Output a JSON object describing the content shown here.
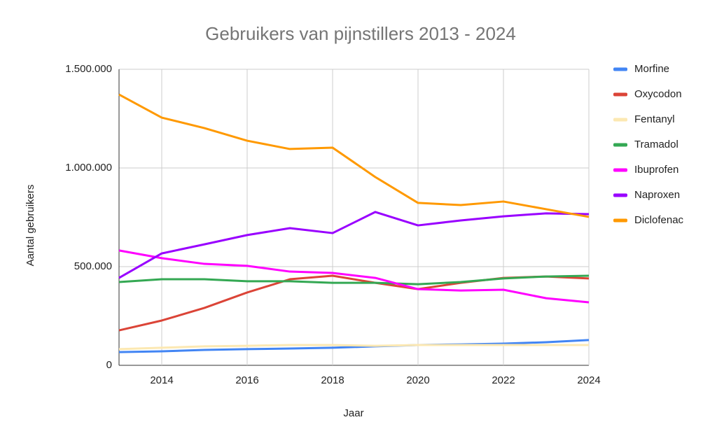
{
  "chart_data": {
    "type": "line",
    "title": "Gebruikers van pijnstillers 2013 - 2024",
    "x_label": "Jaar",
    "y_label": "Aantal gebruikers",
    "x": [
      2013,
      2014,
      2015,
      2016,
      2017,
      2018,
      2019,
      2020,
      2021,
      2022,
      2023,
      2024
    ],
    "xlim": [
      2013,
      2024
    ],
    "xticks": [
      2014,
      2016,
      2018,
      2020,
      2022,
      2024
    ],
    "ylim": [
      0,
      1500000
    ],
    "yticks": [
      0,
      {
        "value": 500000,
        "label": "500.000"
      },
      {
        "value": 1000000,
        "label": "1.000.000"
      },
      {
        "value": 1500000,
        "label": "1.500.000"
      }
    ],
    "grid": true,
    "legend": "right",
    "series": [
      {
        "name": "Morfine",
        "color": "#4285f4",
        "values": [
          67000,
          71000,
          78000,
          82000,
          85000,
          89000,
          96000,
          103000,
          106000,
          110000,
          117000,
          128000
        ]
      },
      {
        "name": "Oxycodon",
        "color": "#db4437",
        "values": [
          177000,
          227000,
          291000,
          369000,
          436000,
          454000,
          418000,
          386000,
          418000,
          443000,
          450000,
          440000
        ]
      },
      {
        "name": "Fentanyl",
        "color": "#fce8b2",
        "values": [
          82000,
          89000,
          96000,
          99000,
          103000,
          103000,
          99000,
          103000,
          103000,
          103000,
          103000,
          103000
        ]
      },
      {
        "name": "Tramadol",
        "color": "#34a853",
        "values": [
          422000,
          436000,
          436000,
          426000,
          426000,
          418000,
          418000,
          411000,
          422000,
          440000,
          450000,
          454000
        ]
      },
      {
        "name": "Ibuprofen",
        "color": "#ff00ff",
        "values": [
          582000,
          543000,
          514000,
          504000,
          475000,
          468000,
          443000,
          386000,
          379000,
          383000,
          340000,
          319000
        ]
      },
      {
        "name": "Naproxen",
        "color": "#9900ff",
        "values": [
          443000,
          567000,
          613000,
          660000,
          695000,
          670000,
          777000,
          709000,
          734000,
          755000,
          770000,
          766000
        ]
      },
      {
        "name": "Diclofenac",
        "color": "#ff9900",
        "values": [
          1372000,
          1255000,
          1202000,
          1138000,
          1096000,
          1103000,
          954000,
          823000,
          812000,
          830000,
          791000,
          752000
        ]
      }
    ]
  }
}
